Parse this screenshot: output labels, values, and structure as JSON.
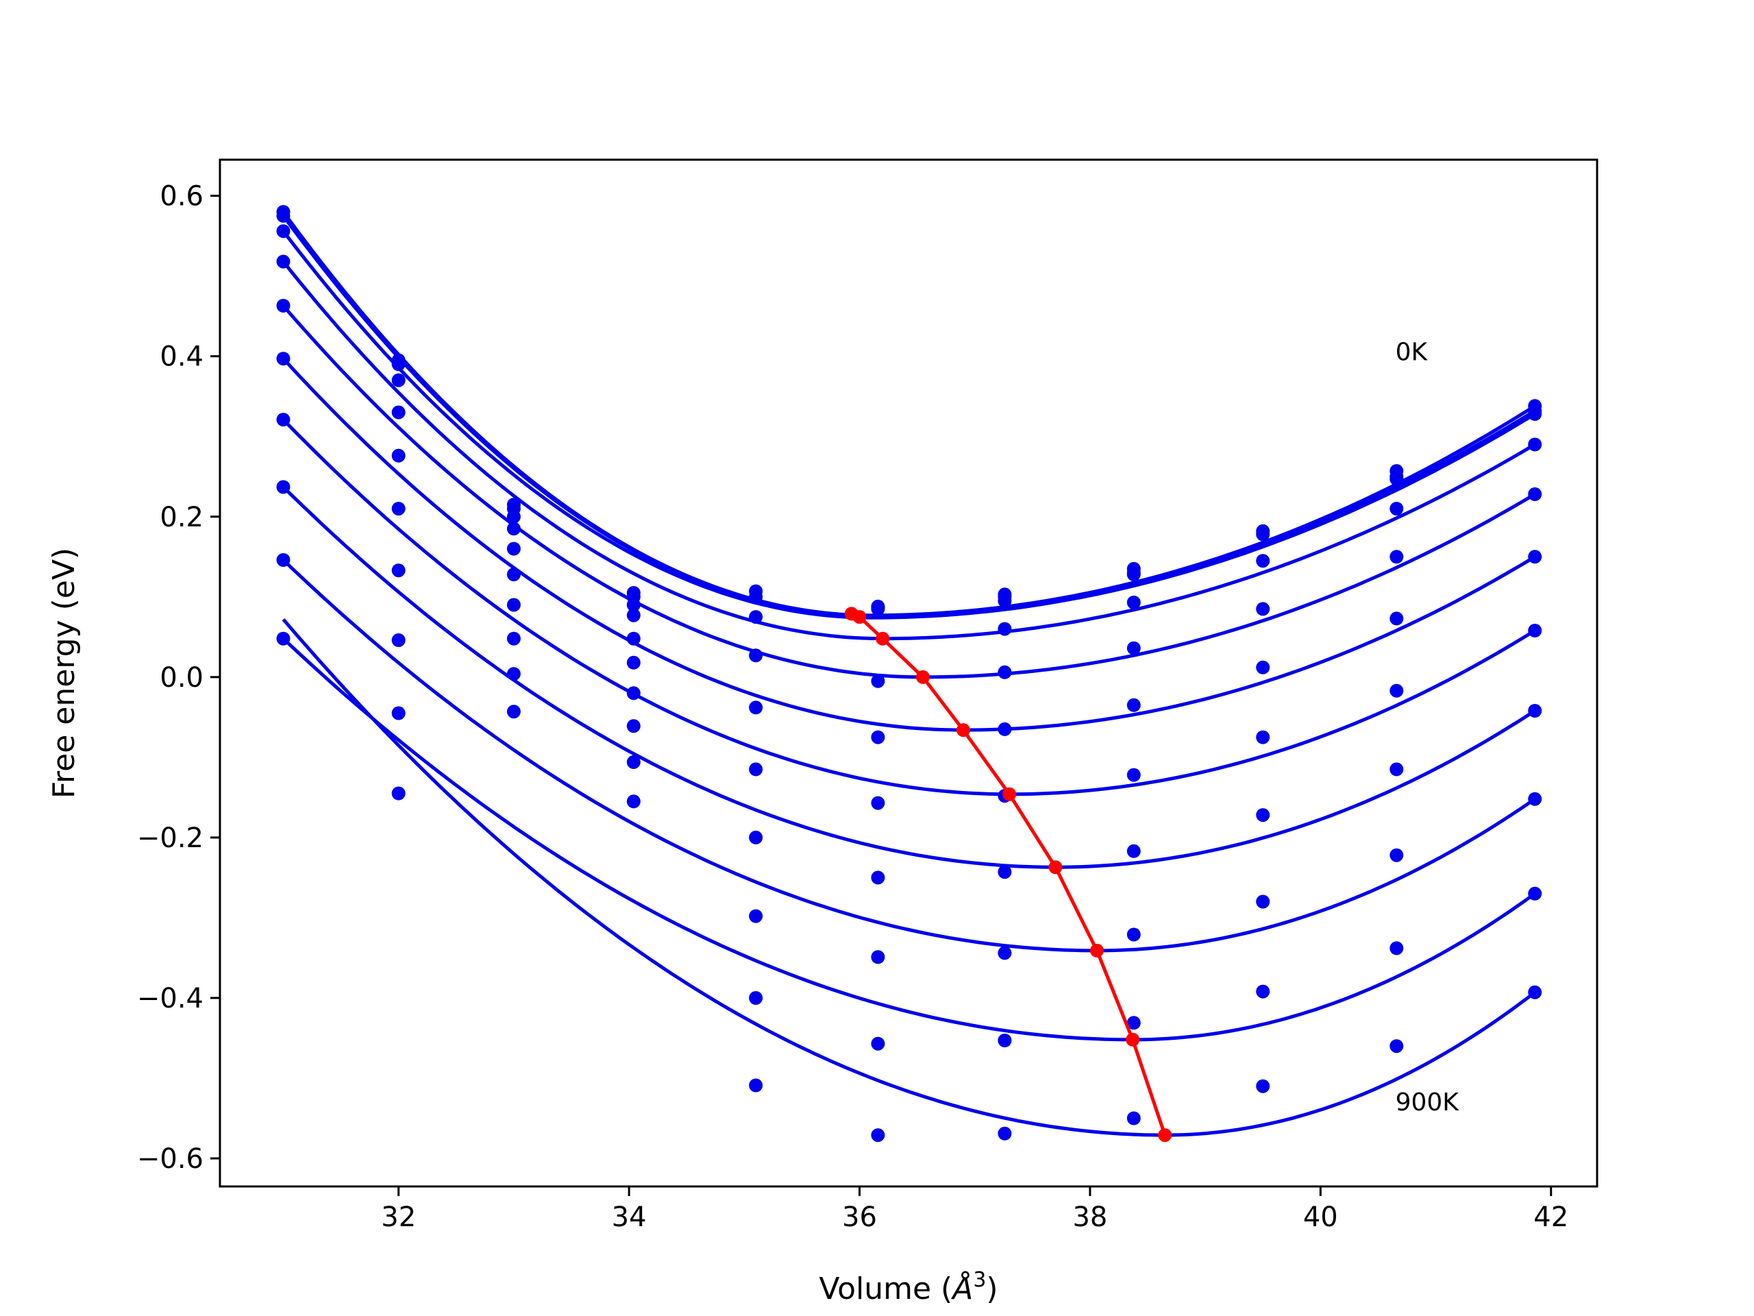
{
  "chart_data": {
    "type": "scatter",
    "xlabel_main": "Volume (",
    "xlabel_unit": "Å",
    "xlabel_exp": "3",
    "xlabel_close": ")",
    "ylabel": "Free energy (eV)",
    "xlim": [
      30.45,
      42.4
    ],
    "ylim": [
      -0.635,
      0.645
    ],
    "xticks": [
      32,
      34,
      36,
      38,
      40,
      42
    ],
    "yticks": [
      0.6,
      0.4,
      0.2,
      0.0,
      -0.2,
      -0.4,
      -0.6
    ],
    "xtick_labels": [
      "32",
      "34",
      "36",
      "38",
      "40",
      "42"
    ],
    "ytick_labels": [
      "0.6",
      "0.4",
      "0.2",
      "0.0",
      "−0.2",
      "−0.4",
      "−0.6"
    ],
    "grid": false,
    "colors": {
      "fit": "#0000ee",
      "points": "#0000ee",
      "minimum": "#ff0000"
    },
    "annotations": [
      {
        "text": "0K",
        "x": 40.65,
        "y": 0.395
      },
      {
        "text": "900K",
        "x": 40.65,
        "y": -0.54
      }
    ],
    "volumes": [
      31.0,
      32.0,
      33.0,
      34.04,
      35.1,
      36.16,
      37.26,
      38.38,
      39.5,
      40.66,
      41.86
    ],
    "series": [
      {
        "fit_min": [
          36.1,
          0.077
        ],
        "values": [
          0.58,
          0.395,
          0.215,
          0.105,
          0.107,
          0.087,
          0.103,
          0.135,
          0.182,
          0.257,
          0.338
        ]
      },
      {
        "fit_min": [
          36.1,
          0.076
        ],
        "values": [
          0.575,
          0.39,
          0.21,
          0.1,
          0.1,
          0.085,
          0.1,
          0.13,
          0.178,
          0.25,
          0.332
        ]
      },
      {
        "fit_min": [
          36.1,
          0.074
        ],
        "values": [
          0.556,
          0.37,
          0.2,
          0.09,
          0.075,
          0.088,
          0.095,
          0.128,
          0.145,
          0.247,
          0.328
        ]
      },
      {
        "fit_min": [
          36.2,
          0.048
        ],
        "values": [
          0.518,
          0.33,
          0.185,
          0.077,
          0.027,
          -0.005,
          0.06,
          0.093,
          0.085,
          0.21,
          0.29
        ]
      },
      {
        "fit_min": [
          36.55,
          0.0
        ],
        "values": [
          0.463,
          0.276,
          0.16,
          0.048,
          -0.038,
          -0.075,
          0.006,
          0.036,
          0.012,
          0.15,
          0.228
        ]
      },
      {
        "fit_min": [
          36.9,
          -0.066
        ],
        "values": [
          0.397,
          0.21,
          0.128,
          0.018,
          -0.115,
          -0.157,
          -0.065,
          -0.035,
          -0.075,
          0.073,
          0.15
        ]
      },
      {
        "fit_min": [
          37.3,
          -0.146
        ],
        "values": [
          0.321,
          0.133,
          0.09,
          -0.02,
          -0.2,
          -0.25,
          -0.148,
          -0.122,
          -0.172,
          -0.017,
          0.058
        ]
      },
      {
        "fit_min": [
          37.7,
          -0.237
        ],
        "values": [
          0.237,
          0.046,
          0.048,
          -0.061,
          -0.298,
          -0.349,
          -0.243,
          -0.217,
          -0.28,
          -0.115,
          -0.042
        ]
      },
      {
        "fit_min": [
          38.06,
          -0.341
        ],
        "values": [
          0.146,
          -0.045,
          0.004,
          -0.106,
          -0.4,
          -0.457,
          -0.344,
          -0.321,
          -0.392,
          -0.222,
          -0.152
        ]
      },
      {
        "fit_min": [
          38.37,
          -0.452
        ],
        "values": [
          0.048,
          -0.145,
          -0.043,
          -0.155,
          -0.509,
          -0.571,
          -0.453,
          -0.431,
          -0.51,
          -0.338,
          -0.27
        ]
      },
      {
        "fit_min": [
          38.65,
          -0.571
        ],
        "values": [
          null,
          null,
          null,
          null,
          null,
          null,
          -0.569,
          -0.55,
          null,
          -0.46,
          -0.393
        ]
      }
    ],
    "minimum_path": [
      {
        "x": 35.93,
        "y": 0.079
      },
      {
        "x": 36.0,
        "y": 0.075
      },
      {
        "x": 36.2,
        "y": 0.048
      },
      {
        "x": 36.55,
        "y": 0.0
      },
      {
        "x": 36.9,
        "y": -0.066
      },
      {
        "x": 37.3,
        "y": -0.146
      },
      {
        "x": 37.7,
        "y": -0.237
      },
      {
        "x": 38.06,
        "y": -0.341
      },
      {
        "x": 38.37,
        "y": -0.452
      },
      {
        "x": 38.65,
        "y": -0.571
      }
    ]
  }
}
